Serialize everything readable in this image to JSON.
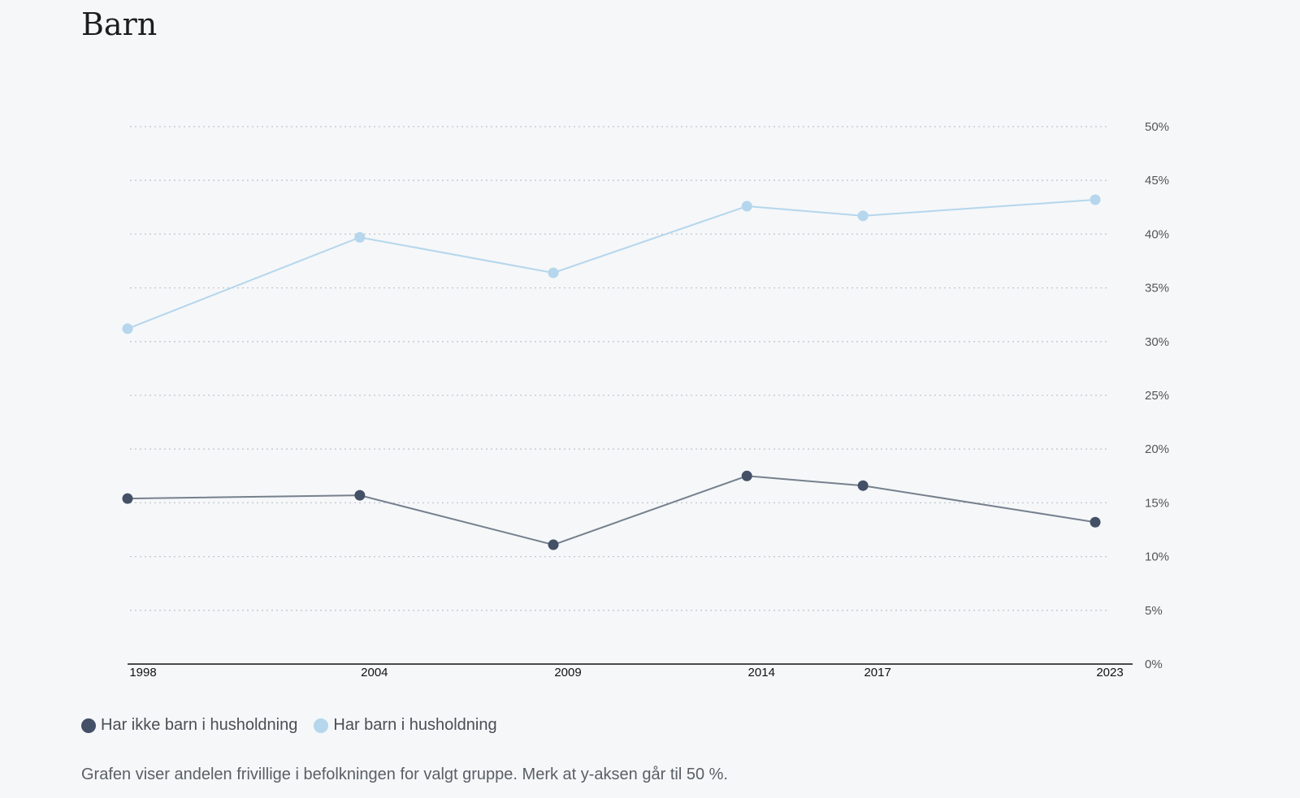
{
  "page": {
    "caption": "Grafen viser andelen frivillige i befolkningen for valgt gruppe. Merk at y-aksen går til 50 %."
  },
  "chart_data": {
    "type": "line",
    "title": "Barn",
    "x": [
      1998,
      2004,
      2009,
      2014,
      2017,
      2023
    ],
    "x_tick_labels": [
      "1998",
      "2004",
      "2009",
      "2014",
      "2017",
      "2023"
    ],
    "y_ticks": [
      0,
      5,
      10,
      15,
      20,
      25,
      30,
      35,
      40,
      45,
      50
    ],
    "y_tick_suffix": "%",
    "ylim": [
      0,
      50
    ],
    "grid": "horizontal-dotted",
    "y_axis_position": "right",
    "legend_position": "bottom-left",
    "series": [
      {
        "name": "Har ikke barn i husholdning",
        "color": "#435066",
        "line_color": "#76808d",
        "values": [
          15.4,
          15.7,
          11.1,
          17.5,
          16.6,
          13.2
        ]
      },
      {
        "name": "Har barn i husholdning",
        "color": "#b5d6ec",
        "line_color": "#b5d6ec",
        "values": [
          31.2,
          39.7,
          36.4,
          42.6,
          41.7,
          43.2
        ]
      }
    ]
  }
}
